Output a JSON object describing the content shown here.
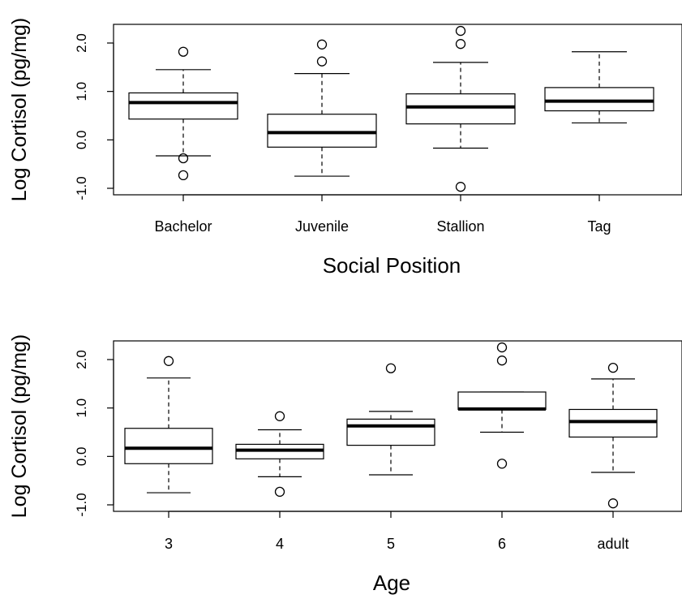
{
  "chart_data": [
    {
      "type": "box",
      "xlabel": "Social Position",
      "ylabel": "Log Cortisol (pg/mg)",
      "ylim": [
        -1.1,
        2.35
      ],
      "yticks": [
        -1.0,
        0.0,
        1.0,
        2.0
      ],
      "ytick_labels": [
        "-1.0",
        "0.0",
        "1.0",
        "2.0"
      ],
      "grid": false,
      "categories": [
        "Bachelor",
        "Juvenile",
        "Stallion",
        "Tag"
      ],
      "boxes": [
        {
          "whisker_low": -0.33,
          "q1": 0.43,
          "median": 0.77,
          "q3": 0.97,
          "whisker_high": 1.45,
          "outliers": [
            1.82,
            -0.38,
            -0.73
          ]
        },
        {
          "whisker_low": -0.75,
          "q1": -0.15,
          "median": 0.15,
          "q3": 0.53,
          "whisker_high": 1.37,
          "outliers": [
            1.97,
            1.62
          ]
        },
        {
          "whisker_low": -0.17,
          "q1": 0.33,
          "median": 0.68,
          "q3": 0.95,
          "whisker_high": 1.6,
          "outliers": [
            2.25,
            1.98,
            -0.97
          ]
        },
        {
          "whisker_low": 0.35,
          "q1": 0.6,
          "median": 0.8,
          "q3": 1.08,
          "whisker_high": 1.82,
          "outliers": []
        }
      ]
    },
    {
      "type": "box",
      "xlabel": "Age",
      "ylabel": "Log Cortisol (pg/mg)",
      "ylim": [
        -1.1,
        2.35
      ],
      "yticks": [
        -1.0,
        0.0,
        1.0,
        2.0
      ],
      "ytick_labels": [
        "-1.0",
        "0.0",
        "1.0",
        "2.0"
      ],
      "grid": false,
      "categories": [
        "3",
        "4",
        "5",
        "6",
        "adult"
      ],
      "boxes": [
        {
          "whisker_low": -0.75,
          "q1": -0.15,
          "median": 0.17,
          "q3": 0.58,
          "whisker_high": 1.62,
          "outliers": [
            1.97
          ]
        },
        {
          "whisker_low": -0.42,
          "q1": -0.05,
          "median": 0.13,
          "q3": 0.25,
          "whisker_high": 0.55,
          "outliers": [
            0.83,
            -0.73
          ]
        },
        {
          "whisker_low": -0.38,
          "q1": 0.23,
          "median": 0.63,
          "q3": 0.77,
          "whisker_high": 0.93,
          "outliers": [
            1.82
          ]
        },
        {
          "whisker_low": 0.5,
          "q1": 0.97,
          "median": 0.98,
          "q3": 1.33,
          "whisker_high": 1.33,
          "outliers": [
            2.25,
            1.98,
            -0.15
          ]
        },
        {
          "whisker_low": -0.33,
          "q1": 0.4,
          "median": 0.72,
          "q3": 0.97,
          "whisker_high": 1.6,
          "outliers": [
            1.83,
            -0.97
          ]
        }
      ]
    }
  ]
}
